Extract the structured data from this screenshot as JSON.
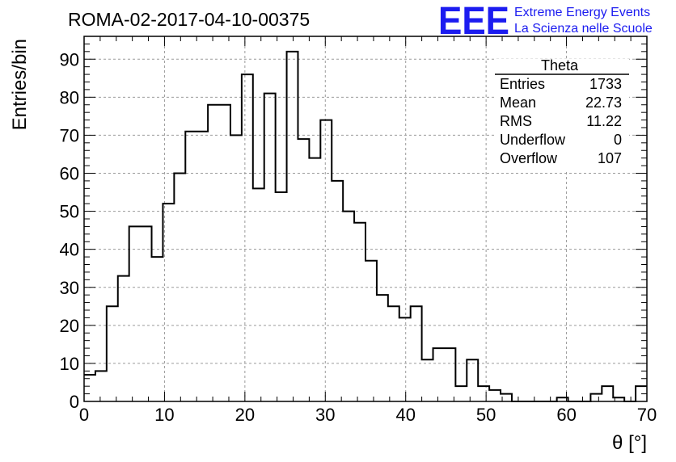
{
  "header": {
    "run_title": "ROMA-02-2017-04-10-00375",
    "logo_text": "EEE",
    "logo_line1": "Extreme Energy Events",
    "logo_line2": "La Scienza nelle Scuole",
    "logo_color": "#1c1cf0"
  },
  "stats_box": {
    "title": "Theta",
    "rows": [
      {
        "label": "Entries",
        "value": "1733"
      },
      {
        "label": "Mean",
        "value": "22.73"
      },
      {
        "label": "RMS",
        "value": "11.22"
      },
      {
        "label": "Underflow",
        "value": "0"
      },
      {
        "label": "Overflow",
        "value": "107"
      }
    ]
  },
  "chart_data": {
    "type": "histogram",
    "title": "ROMA-02-2017-04-10-00375",
    "xlabel": "θ [°]",
    "ylabel": "Entries/bin",
    "xlim": [
      0,
      70
    ],
    "ylim": [
      0,
      96
    ],
    "bin_width": 1.4,
    "xticks": [
      0,
      10,
      20,
      30,
      40,
      50,
      60,
      70
    ],
    "yticks": [
      0,
      10,
      20,
      30,
      40,
      50,
      60,
      70,
      80,
      90
    ],
    "grid": true,
    "series": [
      {
        "values": [
          7,
          8,
          25,
          33,
          46,
          46,
          38,
          52,
          60,
          71,
          71,
          78,
          78,
          70,
          86,
          56,
          81,
          55,
          92,
          69,
          64,
          74,
          58,
          50,
          47,
          37,
          28,
          25,
          22,
          25,
          11,
          14,
          14,
          4,
          11,
          4,
          3,
          2,
          0,
          0,
          0,
          0,
          1,
          0,
          0,
          2,
          4,
          1,
          0,
          4
        ]
      }
    ]
  }
}
